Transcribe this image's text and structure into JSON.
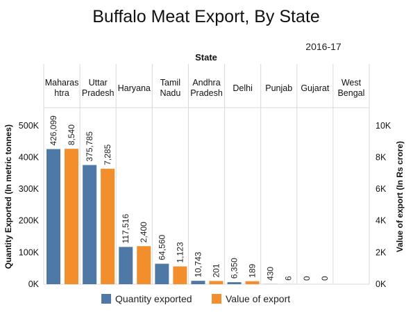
{
  "chart_data": {
    "type": "bar",
    "title": "Buffalo Meat Export, By State",
    "subtitle": "2016-17",
    "column_header": "State",
    "categories": [
      "Maharashtra",
      "Uttar Pradesh",
      "Haryana",
      "Tamil Nadu",
      "Andhra Pradesh",
      "Delhi",
      "Punjab",
      "Gujarat",
      "West Bengal"
    ],
    "category_label_lines": [
      [
        "Maharas",
        "htra"
      ],
      [
        "Uttar",
        "Pradesh"
      ],
      [
        "Haryana"
      ],
      [
        "Tamil",
        "Nadu"
      ],
      [
        "Andhra",
        "Pradesh"
      ],
      [
        "Delhi"
      ],
      [
        "Punjab"
      ],
      [
        "Gujarat"
      ],
      [
        "West",
        "Bengal"
      ]
    ],
    "series": [
      {
        "name": "Quantity exported",
        "axis": "left",
        "color": "#4e79a7",
        "values": [
          426099,
          375785,
          117516,
          64560,
          10743,
          6350,
          430,
          0,
          null
        ],
        "labels": [
          "426,099",
          "375,785",
          "117,516",
          "64,560",
          "10,743",
          "6,350",
          "430",
          "0",
          ""
        ]
      },
      {
        "name": "Value of export",
        "axis": "right",
        "color": "#f28e2b",
        "values": [
          8540,
          7285,
          2400,
          1123,
          201,
          189,
          6,
          0,
          null
        ],
        "labels": [
          "8,540",
          "7,285",
          "2,400",
          "1,123",
          "201",
          "189",
          "6",
          "0",
          ""
        ]
      }
    ],
    "ylabel_left": "Quantity Exported (In metric tonnes)",
    "ylabel_right": "Value of export (In Rs crore)",
    "ylim_left": [
      0,
      550000
    ],
    "ylim_right": [
      0,
      11000
    ],
    "yticks_left": [
      0,
      100000,
      200000,
      300000,
      400000,
      500000
    ],
    "yticks_left_labels": [
      "0K",
      "100K",
      "200K",
      "300K",
      "400K",
      "500K"
    ],
    "yticks_right": [
      0,
      2000,
      4000,
      6000,
      8000,
      10000
    ],
    "yticks_right_labels": [
      "0K",
      "2K",
      "4K",
      "6K",
      "8K",
      "10K"
    ],
    "legend": [
      "Quantity exported",
      "Value of export"
    ],
    "legend_position": "bottom",
    "grid": false
  }
}
